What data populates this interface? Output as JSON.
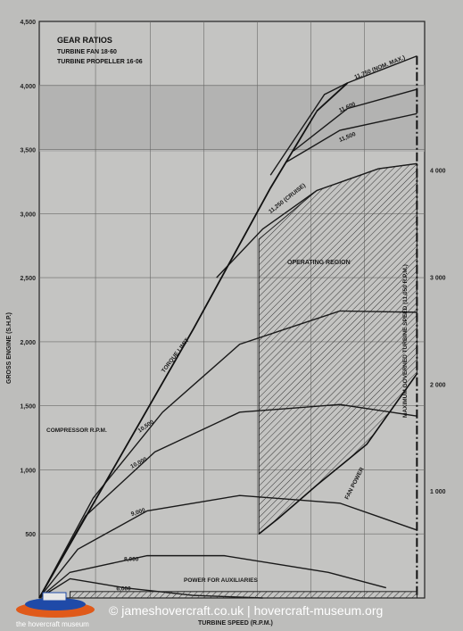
{
  "chart_data": {
    "type": "line",
    "title": "GEAR RATIOS",
    "subtitle_lines": [
      "TURBINE FAN 18·60",
      "TURBINE PROPELLER 16·06"
    ],
    "ylabel": "GROSS ENGINE (S.H.P.)",
    "xlabel": "TURBINE SPEED (R.P.M.)",
    "ylim": [
      0,
      4500
    ],
    "y_ticks": [
      "500",
      "1,000",
      "1,500",
      "2,000",
      "2,500",
      "3,000",
      "3,500",
      "4,000",
      "4,500"
    ],
    "y2_ticks": [
      "1 000",
      "2 000",
      "3 000",
      "4 000"
    ],
    "grid": true,
    "compressor_label": "COMPRESSOR R.P.M.",
    "series": [
      {
        "name": "6,000",
        "x": [
          0,
          8,
          22,
          40,
          58
        ],
        "y": [
          0,
          150,
          80,
          20,
          0
        ]
      },
      {
        "name": "8,000",
        "x": [
          0,
          8,
          28,
          48,
          75,
          90
        ],
        "y": [
          0,
          200,
          330,
          330,
          200,
          80
        ]
      },
      {
        "name": "9,000",
        "x": [
          0,
          10,
          28,
          52,
          78,
          98
        ],
        "y": [
          0,
          380,
          680,
          800,
          740,
          530
        ]
      },
      {
        "name": "10,000",
        "x": [
          0,
          12,
          30,
          52,
          78,
          98
        ],
        "y": [
          0,
          640,
          1140,
          1450,
          1510,
          1420
        ]
      },
      {
        "name": "10,500",
        "x": [
          0,
          14,
          32,
          52,
          78,
          98
        ],
        "y": [
          0,
          780,
          1450,
          1980,
          2240,
          2230
        ]
      },
      {
        "name": "11,250 (CRUISE)",
        "x": [
          46,
          58,
          72,
          88,
          98
        ],
        "y": [
          2500,
          2880,
          3180,
          3350,
          3390
        ]
      },
      {
        "name": "11,500",
        "x": [
          64,
          78,
          98
        ],
        "y": [
          3400,
          3650,
          3780
        ]
      },
      {
        "name": "11,600",
        "x": [
          66,
          80,
          98
        ],
        "y": [
          3490,
          3820,
          3970
        ]
      },
      {
        "name": "11,750 (NOM. MAX.)",
        "x": [
          60,
          74,
          80,
          98
        ],
        "y": [
          3300,
          3930,
          4020,
          4230
        ]
      }
    ],
    "torque_limit": {
      "name": "TORQUE LIMIT",
      "x": [
        0,
        20,
        40,
        60,
        72,
        80
      ],
      "y": [
        0,
        1050,
        2100,
        3200,
        3800,
        4020
      ]
    },
    "fan_power": {
      "name": "FAN POWER",
      "x": [
        57,
        62,
        72,
        85,
        98
      ],
      "y": [
        500,
        620,
        880,
        1200,
        1750
      ]
    },
    "power_for_auxiliaries": {
      "name": "POWER FOR AUXILIARIES",
      "x": [
        8,
        98
      ],
      "y": [
        50,
        50
      ]
    },
    "operating_region_label": "OPERATING REGION",
    "max_governed_label": "MAXIMUM GOVERNED TURBINE SPEED (11,050 R.P.M.)"
  },
  "watermark": "© jameshovercraft.co.uk | hovercraft-museum.org",
  "logo_text": "the hovercraft museum"
}
